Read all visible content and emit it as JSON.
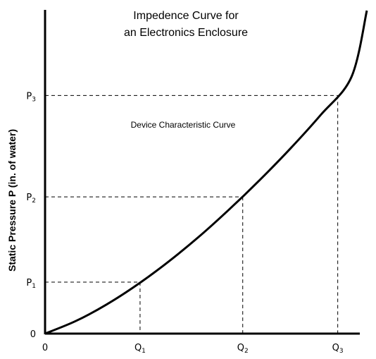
{
  "chart_data": {
    "type": "line",
    "title": [
      "Impedence Curve for",
      "an Electronics Enclosure"
    ],
    "ylabel": "Static Pressure P (in. of water)",
    "xlabel": "",
    "annotation": "Device Characteristic Curve",
    "x_ticks": [
      {
        "base": "0",
        "sub": ""
      },
      {
        "base": "Q",
        "sub": "1"
      },
      {
        "base": "Q",
        "sub": "2"
      },
      {
        "base": "Q",
        "sub": "3"
      }
    ],
    "y_ticks": [
      {
        "base": "0",
        "sub": ""
      },
      {
        "base": "P",
        "sub": "1"
      },
      {
        "base": "P",
        "sub": "2"
      },
      {
        "base": "P",
        "sub": "3"
      }
    ],
    "xlim": [
      0,
      1.05
    ],
    "ylim": [
      0,
      1.16
    ],
    "series": [
      {
        "x": [
          0,
          0.1,
          0.2,
          0.3,
          0.4,
          0.5,
          0.6,
          0.7,
          0.8,
          0.9,
          1.0,
          1.05
        ],
        "y": [
          0,
          0.045,
          0.104,
          0.175,
          0.256,
          0.346,
          0.445,
          0.551,
          0.664,
          0.786,
          0.922,
          1.16
        ]
      }
    ],
    "operating_points": [
      {
        "x": 0.31,
        "y": 0.185
      },
      {
        "x": 0.645,
        "y": 0.491
      },
      {
        "x": 0.955,
        "y": 0.855
      }
    ],
    "grid": false,
    "legend": "none"
  }
}
